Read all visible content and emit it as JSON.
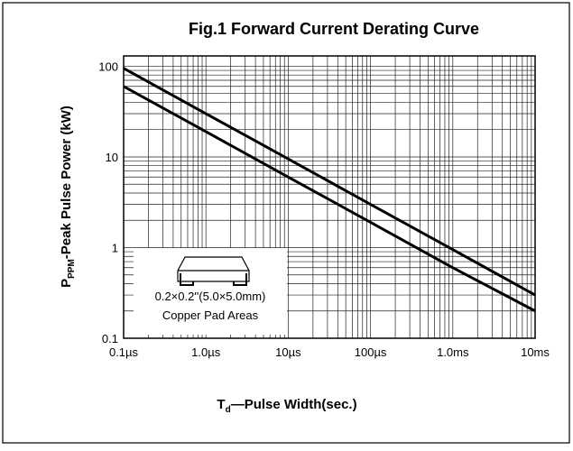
{
  "chart_data": {
    "type": "line",
    "title": "Fig.1 Forward Current Derating Curve",
    "y_label": {
      "main": "P",
      "sub": "PPM",
      "rest": "-Peak Pulse Power (kW)"
    },
    "x_label": {
      "main": "T",
      "sub": "d",
      "rest": "—Pulse Width(sec.)"
    },
    "x": [
      0.1,
      1,
      10,
      100,
      1000,
      10000
    ],
    "series": [
      {
        "color": "#000000",
        "values": [
          95,
          30,
          9.5,
          3,
          0.95,
          0.3
        ]
      },
      {
        "color": "#000000",
        "values": [
          60,
          19,
          6,
          1.9,
          0.6,
          0.2
        ]
      }
    ],
    "xlim": [
      0.1,
      10000
    ],
    "ylim": [
      0.1,
      130
    ],
    "xticks": [
      {
        "value": 0.1,
        "label": "0.1µs"
      },
      {
        "value": 1,
        "label": "1.0µs"
      },
      {
        "value": 10,
        "label": "10µs"
      },
      {
        "value": 100,
        "label": "100µs"
      },
      {
        "value": 1000,
        "label": "1.0ms"
      },
      {
        "value": 10000,
        "label": "10ms"
      }
    ],
    "yticks": [
      0.1,
      1,
      10,
      100
    ],
    "xlog": true,
    "ylog": true,
    "grid": true,
    "minor_grid": true,
    "annotation": {
      "line1": "0.2×0.2''(5.0×5.0mm)",
      "line2": "Copper Pad Areas"
    }
  }
}
